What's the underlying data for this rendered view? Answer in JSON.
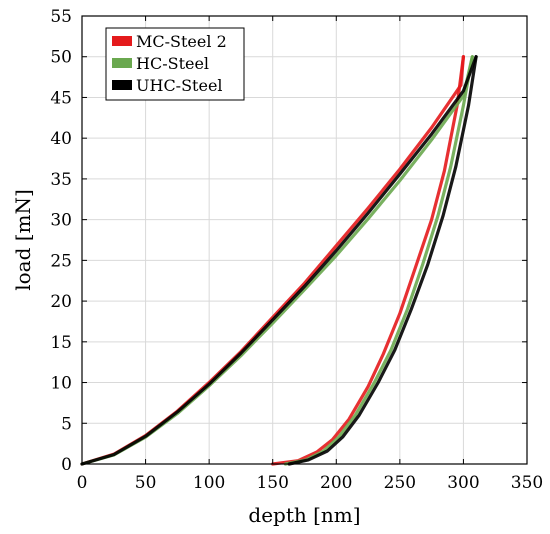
{
  "chart_data": {
    "type": "line",
    "title": "",
    "xlabel": "depth [nm]",
    "ylabel": "load [mN]",
    "xlim": [
      0,
      350
    ],
    "ylim": [
      0,
      55
    ],
    "xticks": [
      0,
      50,
      100,
      150,
      200,
      250,
      300,
      350
    ],
    "yticks": [
      0,
      5,
      10,
      15,
      20,
      25,
      30,
      35,
      40,
      45,
      50,
      55
    ],
    "grid": true,
    "legend_position": "top-left",
    "series": [
      {
        "name": "MC-Steel 2",
        "color": "#e41a1c",
        "loading": [
          [
            0,
            0
          ],
          [
            25,
            1.2
          ],
          [
            50,
            3.5
          ],
          [
            75,
            6.5
          ],
          [
            100,
            10
          ],
          [
            125,
            13.8
          ],
          [
            150,
            18
          ],
          [
            175,
            22.2
          ],
          [
            200,
            26.8
          ],
          [
            225,
            31.4
          ],
          [
            250,
            36.2
          ],
          [
            275,
            41.3
          ],
          [
            298,
            46.5
          ],
          [
            300,
            50
          ]
        ],
        "unloading": [
          [
            300,
            50
          ],
          [
            295,
            44
          ],
          [
            285,
            36
          ],
          [
            275,
            30
          ],
          [
            262,
            24
          ],
          [
            250,
            18.5
          ],
          [
            237,
            13.5
          ],
          [
            225,
            9.5
          ],
          [
            210,
            5.5
          ],
          [
            197,
            3.0
          ],
          [
            185,
            1.5
          ],
          [
            170,
            0.4
          ],
          [
            150,
            0
          ]
        ]
      },
      {
        "name": "HC-Steel",
        "color": "#6aa84f",
        "loading": [
          [
            0,
            0
          ],
          [
            25,
            1.1
          ],
          [
            50,
            3.3
          ],
          [
            75,
            6.2
          ],
          [
            100,
            9.6
          ],
          [
            125,
            13.3
          ],
          [
            150,
            17.3
          ],
          [
            175,
            21.4
          ],
          [
            200,
            25.6
          ],
          [
            225,
            30.1
          ],
          [
            250,
            34.8
          ],
          [
            275,
            39.8
          ],
          [
            300,
            45.2
          ],
          [
            307,
            50
          ]
        ],
        "unloading": [
          [
            307,
            50
          ],
          [
            300,
            44
          ],
          [
            290,
            36.5
          ],
          [
            280,
            30.5
          ],
          [
            268,
            24.5
          ],
          [
            256,
            19
          ],
          [
            243,
            14
          ],
          [
            230,
            10
          ],
          [
            215,
            6
          ],
          [
            202,
            3.3
          ],
          [
            190,
            1.6
          ],
          [
            176,
            0.5
          ],
          [
            160,
            0
          ]
        ]
      },
      {
        "name": "UHC-Steel",
        "color": "#000000",
        "loading": [
          [
            0,
            0
          ],
          [
            25,
            1.15
          ],
          [
            50,
            3.4
          ],
          [
            75,
            6.4
          ],
          [
            100,
            9.8
          ],
          [
            125,
            13.6
          ],
          [
            150,
            17.7
          ],
          [
            175,
            21.8
          ],
          [
            200,
            26.2
          ],
          [
            225,
            30.8
          ],
          [
            250,
            35.6
          ],
          [
            275,
            40.5
          ],
          [
            300,
            45.8
          ],
          [
            310,
            50
          ]
        ],
        "unloading": [
          [
            310,
            50
          ],
          [
            304,
            44
          ],
          [
            294,
            36.5
          ],
          [
            284,
            30.5
          ],
          [
            272,
            24.5
          ],
          [
            259,
            19
          ],
          [
            246,
            14
          ],
          [
            233,
            10
          ],
          [
            218,
            6
          ],
          [
            205,
            3.3
          ],
          [
            193,
            1.6
          ],
          [
            178,
            0.5
          ],
          [
            163,
            0
          ]
        ]
      }
    ]
  }
}
